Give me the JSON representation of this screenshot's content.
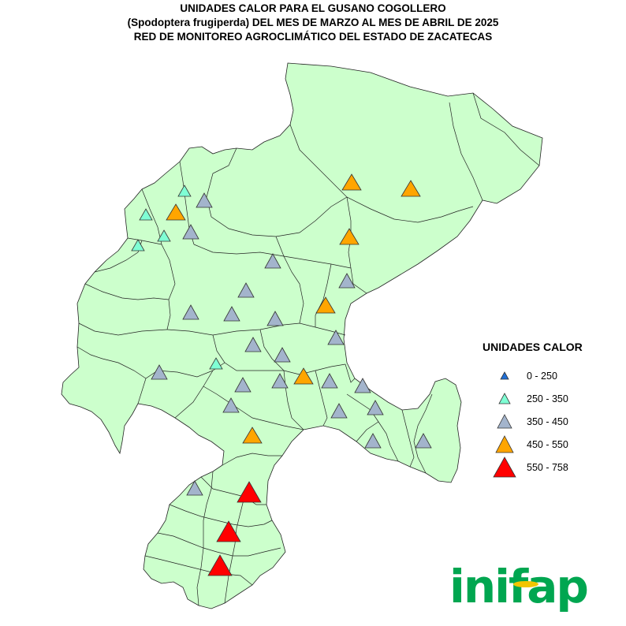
{
  "title": {
    "line1": "UNIDADES CALOR PARA EL GUSANO COGOLLERO",
    "line2": "(Spodoptera frugiperda) DEL MES DE MARZO AL MES DE ABRIL DE 2025",
    "line3": "RED DE MONITOREO AGROCLIMÁTICO DEL ESTADO DE ZACATECAS"
  },
  "legend": {
    "title": "UNIDADES CALOR",
    "classes": [
      {
        "label": "0 - 250",
        "color": "#1f6fd6"
      },
      {
        "label": "250 - 350",
        "color": "#7fffd4"
      },
      {
        "label": "350 - 450",
        "color": "#a3b4cc"
      },
      {
        "label": "450 - 550",
        "color": "#ffa500"
      },
      {
        "label": "550 - 758",
        "color": "#ff0000"
      }
    ]
  },
  "map": {
    "fill_color": "#ccffcc",
    "stations": [
      {
        "class": 1
      },
      {
        "class": 1
      },
      {
        "class": 1
      },
      {
        "class": 1
      },
      {
        "class": 1
      },
      {
        "class": 2
      },
      {
        "class": 2
      },
      {
        "class": 2
      },
      {
        "class": 2
      },
      {
        "class": 2
      },
      {
        "class": 2
      },
      {
        "class": 2
      },
      {
        "class": 2
      },
      {
        "class": 2
      },
      {
        "class": 2
      },
      {
        "class": 2
      },
      {
        "class": 2
      },
      {
        "class": 2
      },
      {
        "class": 2
      },
      {
        "class": 2
      },
      {
        "class": 2
      },
      {
        "class": 2
      },
      {
        "class": 2
      },
      {
        "class": 2
      },
      {
        "class": 2
      },
      {
        "class": 2
      },
      {
        "class": 2
      },
      {
        "class": 3
      },
      {
        "class": 3
      },
      {
        "class": 3
      },
      {
        "class": 3
      },
      {
        "class": 3
      },
      {
        "class": 3
      },
      {
        "class": 3
      },
      {
        "class": 4
      },
      {
        "class": 4
      },
      {
        "class": 4
      }
    ]
  },
  "logo": {
    "text": "inifap",
    "color": "#00a650",
    "accent": "#f2c500"
  }
}
